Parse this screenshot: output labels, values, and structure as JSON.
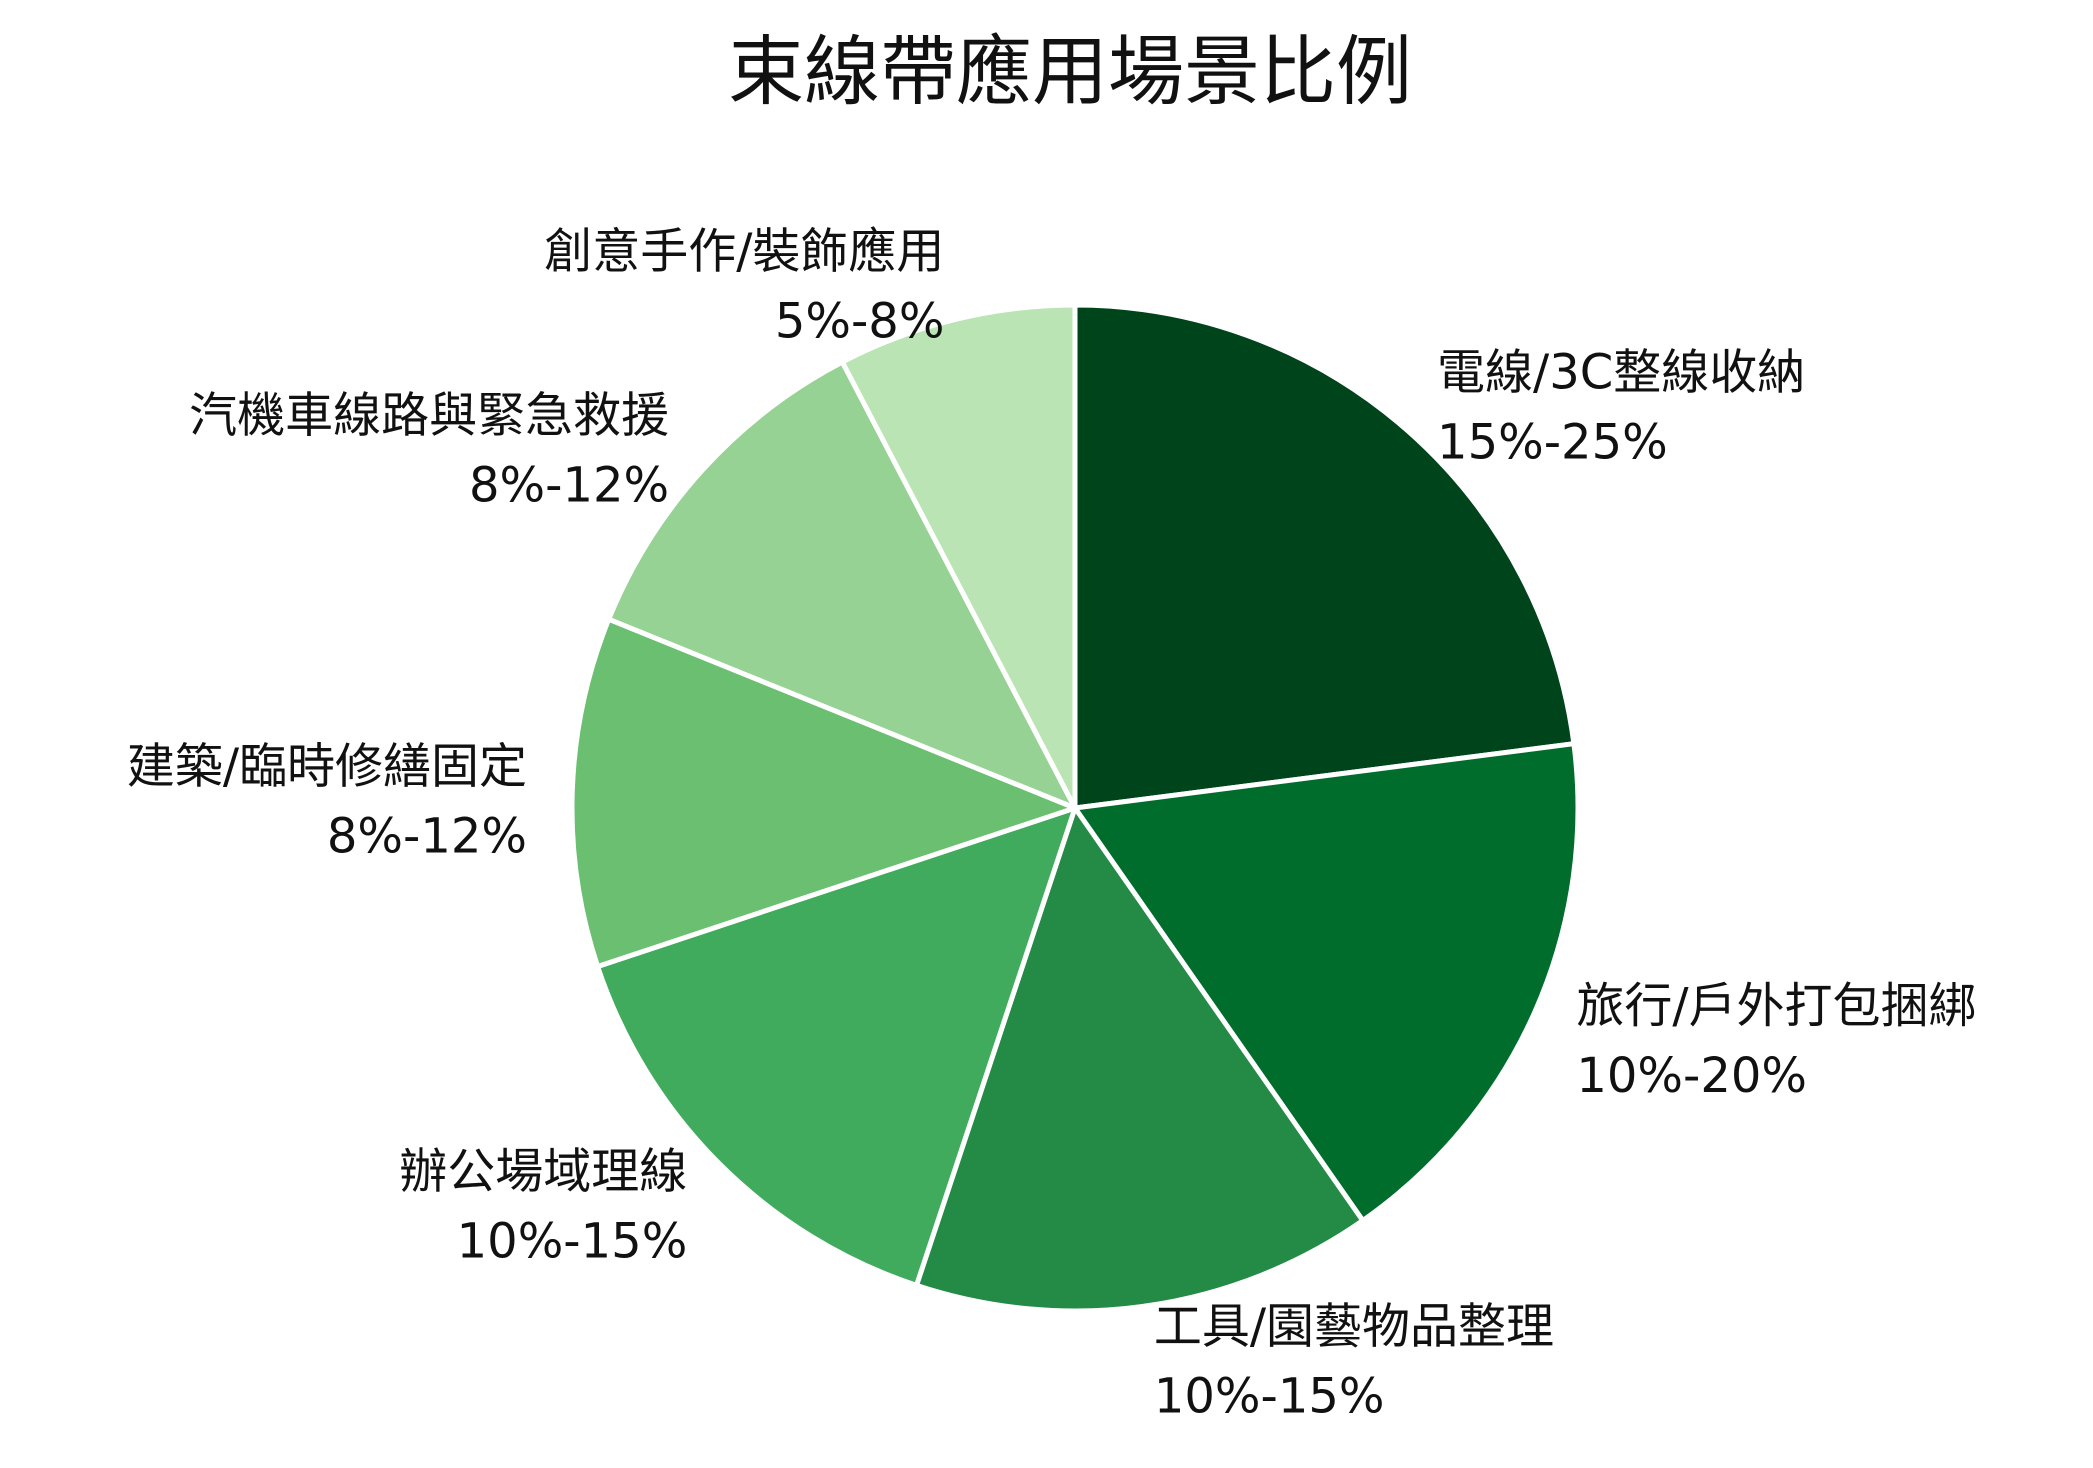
{
  "chart_data": {
    "type": "pie",
    "title": "束線帶應用場景比例",
    "start_angle_deg": 90,
    "direction": "clockwise",
    "slices": [
      {
        "label": "電線/3C整線收納",
        "range_label": "15%-25%",
        "value": 22.5,
        "color": "#00441b"
      },
      {
        "label": "旅行/戶外打包捆綁",
        "range_label": "10%-20%",
        "value": 17.0,
        "color": "#006d2c"
      },
      {
        "label": "工具/園藝物品整理",
        "range_label": "10%-15%",
        "value": 14.5,
        "color": "#238b45"
      },
      {
        "label": "辦公場域理線",
        "range_label": "10%-15%",
        "value": 14.5,
        "color": "#41ab5d"
      },
      {
        "label": "建築/臨時修繕固定",
        "range_label": "8%-12%",
        "value": 11.0,
        "color": "#6bbf70"
      },
      {
        "label": "汽機車線路與緊急救援",
        "range_label": "8%-12%",
        "value": 11.0,
        "color": "#96d293"
      },
      {
        "label": "創意手作/裝飾應用",
        "range_label": "5%-8%",
        "value": 7.5,
        "color": "#bae4b3"
      }
    ]
  }
}
